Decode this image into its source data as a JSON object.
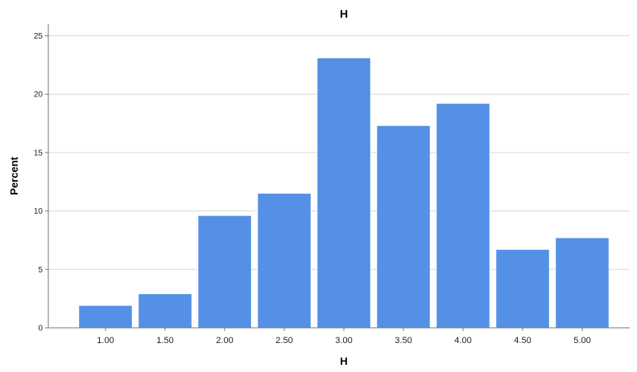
{
  "chart_data": {
    "type": "bar",
    "title": "H",
    "xlabel": "H",
    "ylabel": "Percent",
    "categories": [
      "1.00",
      "1.50",
      "2.00",
      "2.50",
      "3.00",
      "3.50",
      "4.00",
      "4.50",
      "5.00"
    ],
    "values": [
      1.9,
      2.9,
      9.6,
      11.5,
      23.1,
      17.3,
      19.2,
      6.7,
      7.7
    ],
    "ylim": [
      0,
      26
    ],
    "yticks": [
      "0",
      "5",
      "10",
      "15",
      "20",
      "25"
    ],
    "grid": true,
    "bar_color": "#5390e6"
  }
}
